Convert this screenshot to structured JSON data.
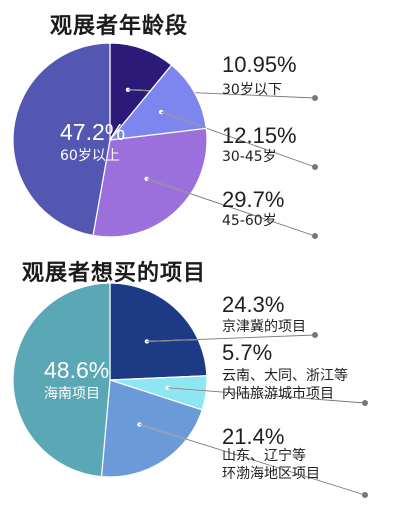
{
  "chart_data": [
    {
      "type": "pie",
      "title": "观展者年龄段",
      "slices": [
        {
          "value_label": "10.95%",
          "value": 10.95,
          "label": "30岁以下",
          "color": "#2c1a78"
        },
        {
          "value_label": "12.15%",
          "value": 12.15,
          "label": "30-45岁",
          "color": "#7d86ee"
        },
        {
          "value_label": "29.7%",
          "value": 29.7,
          "label": "45-60岁",
          "color": "#9b6fdc"
        },
        {
          "value_label": "47.2%",
          "value": 47.2,
          "label": "60岁以上",
          "color": "#5457b2"
        }
      ]
    },
    {
      "type": "pie",
      "title": "观展者想买的项目",
      "slices": [
        {
          "value_label": "24.3%",
          "value": 24.3,
          "label": "京津冀的项目",
          "color": "#1d3a85"
        },
        {
          "value_label": "5.7%",
          "value": 5.7,
          "label": "云南、大同、浙江等内陆旅游城市项目",
          "label_lines": [
            "云南、大同、浙江等",
            "内陆旅游城市项目"
          ],
          "color": "#8ee6f3"
        },
        {
          "value_label": "21.4%",
          "value": 21.4,
          "label": "山东、辽宁等环渤海地区项目",
          "label_lines": [
            "山东、辽宁等",
            "环渤海地区项目"
          ],
          "color": "#6b9ad8"
        },
        {
          "value_label": "48.6%",
          "value": 48.6,
          "label": "海南项目",
          "color": "#5aa7b5"
        }
      ]
    }
  ]
}
